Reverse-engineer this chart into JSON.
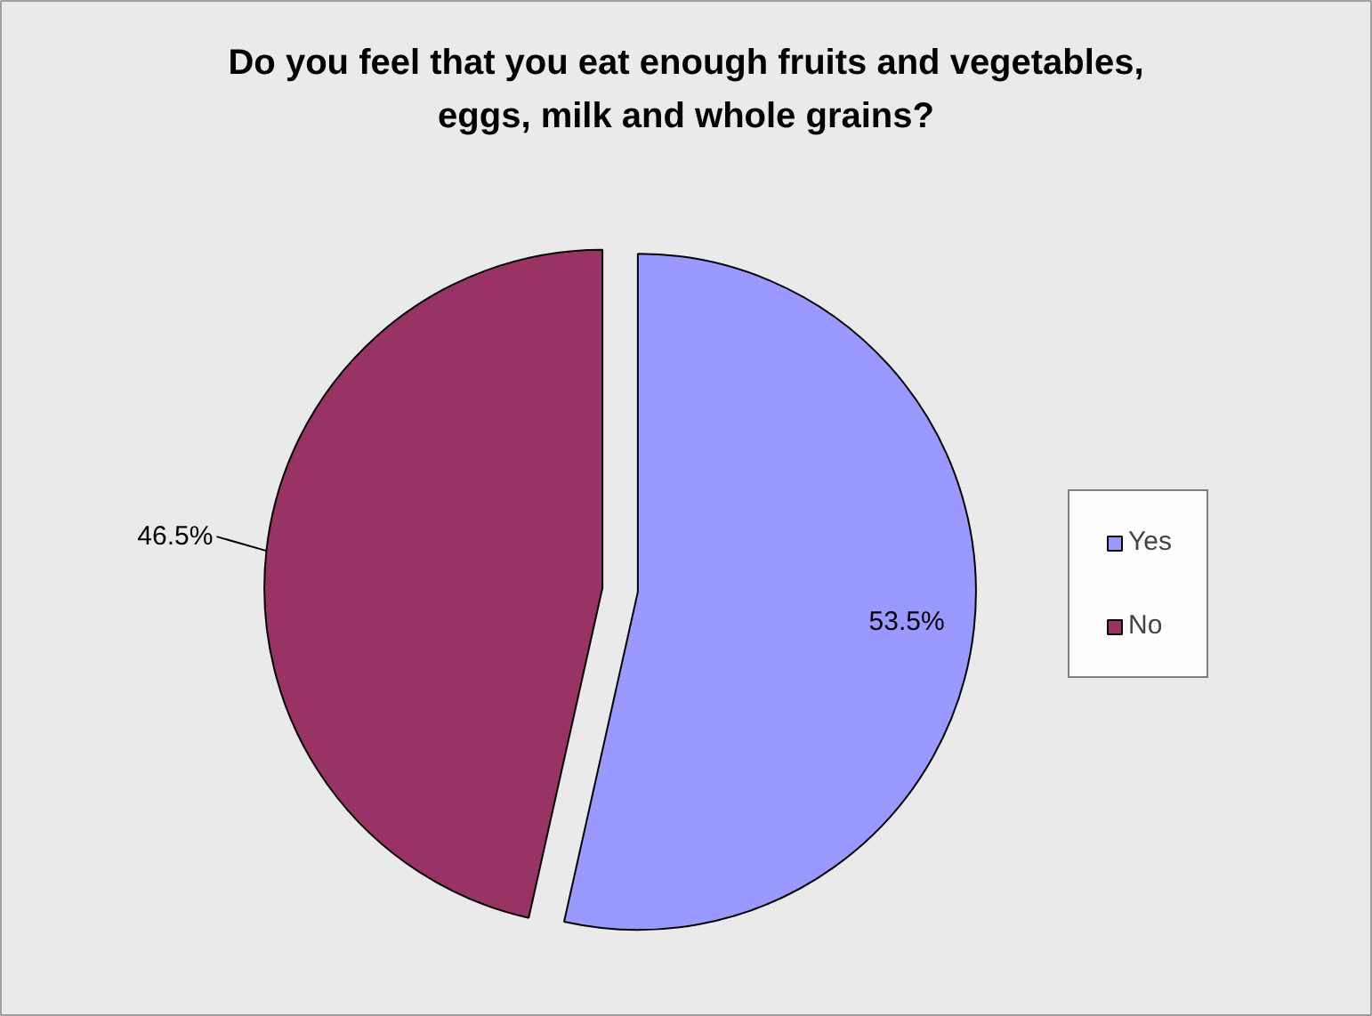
{
  "chart_data": {
    "type": "pie",
    "title": "Do you feel that you eat enough fruits and vegetables, eggs, milk and whole grains?",
    "categories": [
      "Yes",
      "No"
    ],
    "values": [
      53.5,
      46.5
    ],
    "colors": [
      "#9999ff",
      "#993366"
    ],
    "value_labels": [
      "53.5%",
      "46.5%"
    ],
    "legend": "right"
  }
}
